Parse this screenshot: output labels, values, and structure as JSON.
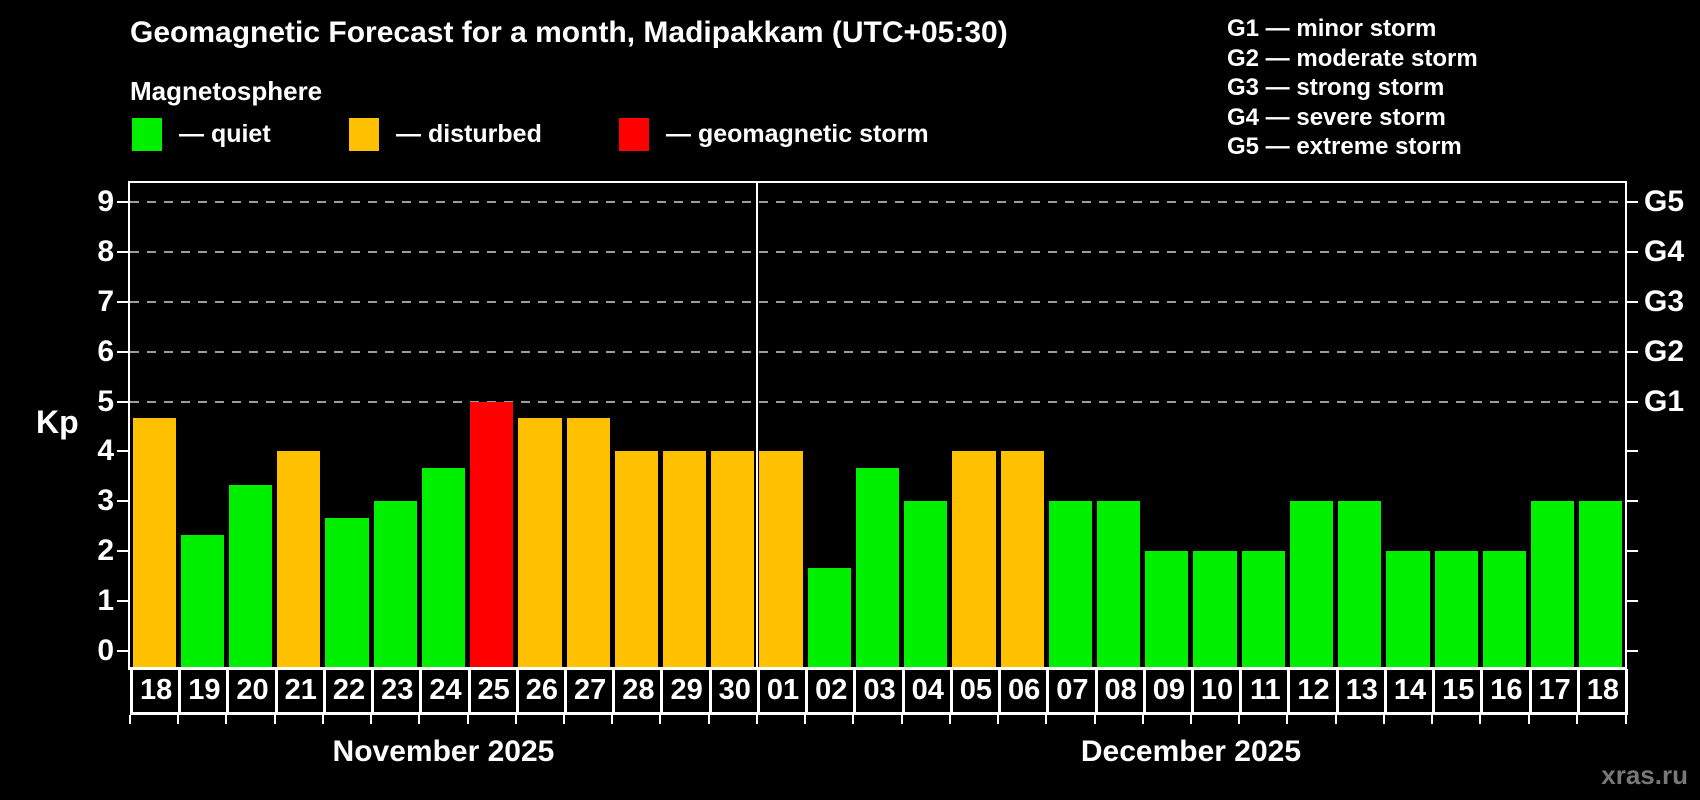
{
  "header": {
    "title": "Geomagnetic Forecast for a month, Madipakkam (UTC+05:30)",
    "subtitle": "Magnetosphere"
  },
  "legend": {
    "items": [
      {
        "status": "quiet",
        "label": "— quiet",
        "color": "#00f000"
      },
      {
        "status": "disturbed",
        "label": "— disturbed",
        "color": "#ffc000"
      },
      {
        "status": "storm",
        "label": "— geomagnetic storm",
        "color": "#ff0000"
      }
    ]
  },
  "g_legend": {
    "items": [
      "G1 — minor storm",
      "G2 — moderate storm",
      "G3 — strong storm",
      "G4 — severe storm",
      "G5 — extreme storm"
    ]
  },
  "watermark": "xras.ru",
  "chart_data": {
    "type": "bar",
    "title": "Geomagnetic Forecast for a month, Madipakkam (UTC+05:30)",
    "ylabel": "Kp",
    "ylim": [
      0,
      9
    ],
    "yticks": [
      0,
      1,
      2,
      3,
      4,
      5,
      6,
      7,
      8,
      9
    ],
    "gridlines_at": [
      5,
      6,
      7,
      8,
      9
    ],
    "grid_style": "dashed gray horizontal at storm levels",
    "legend_position": "top-left",
    "right_axis_labels": [
      {
        "value": 5,
        "label": "G1"
      },
      {
        "value": 6,
        "label": "G2"
      },
      {
        "value": 7,
        "label": "G3"
      },
      {
        "value": 8,
        "label": "G4"
      },
      {
        "value": 9,
        "label": "G5"
      }
    ],
    "status_colors": {
      "quiet": "#00f000",
      "disturbed": "#ffc000",
      "storm": "#ff0000"
    },
    "months": [
      {
        "label": "November 2025",
        "bars": [
          {
            "day": "18",
            "kp": 4.67,
            "status": "disturbed"
          },
          {
            "day": "19",
            "kp": 2.33,
            "status": "quiet"
          },
          {
            "day": "20",
            "kp": 3.33,
            "status": "quiet"
          },
          {
            "day": "21",
            "kp": 4.0,
            "status": "disturbed"
          },
          {
            "day": "22",
            "kp": 2.67,
            "status": "quiet"
          },
          {
            "day": "23",
            "kp": 3.0,
            "status": "quiet"
          },
          {
            "day": "24",
            "kp": 3.67,
            "status": "quiet"
          },
          {
            "day": "25",
            "kp": 5.0,
            "status": "storm"
          },
          {
            "day": "26",
            "kp": 4.67,
            "status": "disturbed"
          },
          {
            "day": "27",
            "kp": 4.67,
            "status": "disturbed"
          },
          {
            "day": "28",
            "kp": 4.0,
            "status": "disturbed"
          },
          {
            "day": "29",
            "kp": 4.0,
            "status": "disturbed"
          },
          {
            "day": "30",
            "kp": 4.0,
            "status": "disturbed"
          }
        ]
      },
      {
        "label": "December 2025",
        "bars": [
          {
            "day": "01",
            "kp": 4.0,
            "status": "disturbed"
          },
          {
            "day": "02",
            "kp": 1.67,
            "status": "quiet"
          },
          {
            "day": "03",
            "kp": 3.67,
            "status": "quiet"
          },
          {
            "day": "04",
            "kp": 3.0,
            "status": "quiet"
          },
          {
            "day": "05",
            "kp": 4.0,
            "status": "disturbed"
          },
          {
            "day": "06",
            "kp": 4.0,
            "status": "disturbed"
          },
          {
            "day": "07",
            "kp": 3.0,
            "status": "quiet"
          },
          {
            "day": "08",
            "kp": 3.0,
            "status": "quiet"
          },
          {
            "day": "09",
            "kp": 2.0,
            "status": "quiet"
          },
          {
            "day": "10",
            "kp": 2.0,
            "status": "quiet"
          },
          {
            "day": "11",
            "kp": 2.0,
            "status": "quiet"
          },
          {
            "day": "12",
            "kp": 3.0,
            "status": "quiet"
          },
          {
            "day": "13",
            "kp": 3.0,
            "status": "quiet"
          },
          {
            "day": "14",
            "kp": 2.0,
            "status": "quiet"
          },
          {
            "day": "15",
            "kp": 2.0,
            "status": "quiet"
          },
          {
            "day": "16",
            "kp": 2.0,
            "status": "quiet"
          },
          {
            "day": "17",
            "kp": 3.0,
            "status": "quiet"
          },
          {
            "day": "18",
            "kp": 3.0,
            "status": "quiet"
          }
        ]
      }
    ]
  }
}
